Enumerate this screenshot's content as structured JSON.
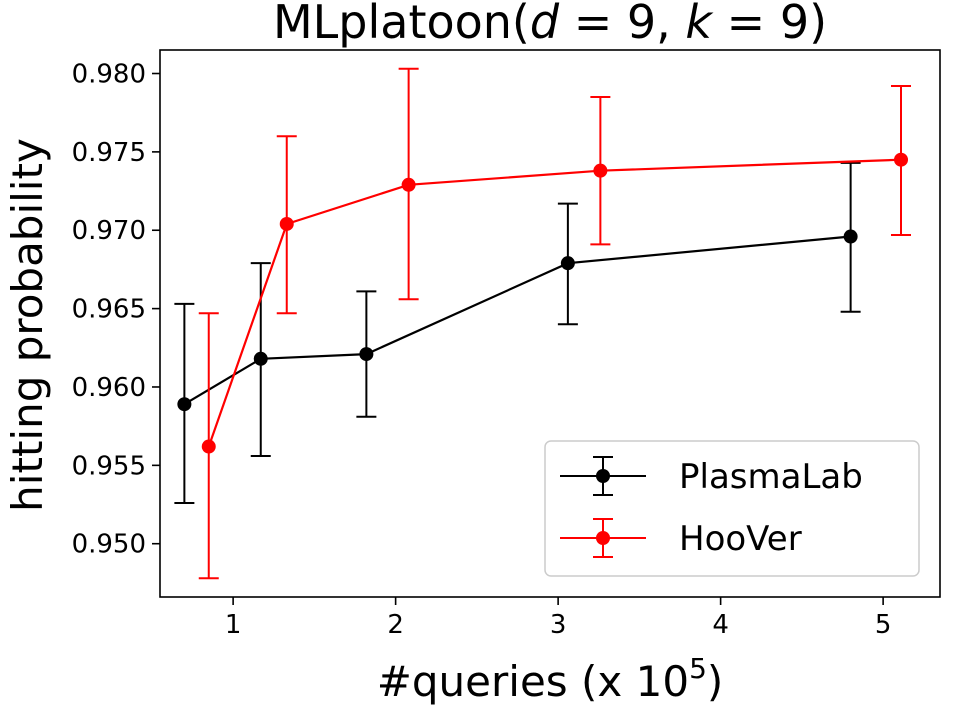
{
  "chart_data": {
    "type": "line",
    "title": {
      "prefix": "MLplatoon(",
      "d_var": "d",
      "d_val": " = 9, ",
      "k_var": "k",
      "k_val": " = 9)"
    },
    "xlabel": {
      "base": "#queries (x 10",
      "exponent": "5",
      "suffix": ")"
    },
    "ylabel": "hitting probability",
    "xlim": [
      0.55,
      5.35
    ],
    "ylim": [
      0.9466,
      0.9815
    ],
    "xticks": [
      {
        "value": 1,
        "label": "1"
      },
      {
        "value": 2,
        "label": "2"
      },
      {
        "value": 3,
        "label": "3"
      },
      {
        "value": 4,
        "label": "4"
      },
      {
        "value": 5,
        "label": "5"
      }
    ],
    "yticks": [
      {
        "value": 0.95,
        "label": "0.950"
      },
      {
        "value": 0.955,
        "label": "0.955"
      },
      {
        "value": 0.96,
        "label": "0.960"
      },
      {
        "value": 0.965,
        "label": "0.965"
      },
      {
        "value": 0.97,
        "label": "0.970"
      },
      {
        "value": 0.975,
        "label": "0.975"
      },
      {
        "value": 0.98,
        "label": "0.980"
      }
    ],
    "grid": false,
    "legend_position": "lower-right",
    "series": [
      {
        "name": "PlasmaLab",
        "color": "#000000",
        "points": [
          {
            "x": 0.7,
            "y": 0.9589,
            "lo": 0.9526,
            "hi": 0.9653
          },
          {
            "x": 1.17,
            "y": 0.9618,
            "lo": 0.9556,
            "hi": 0.9679
          },
          {
            "x": 1.82,
            "y": 0.9621,
            "lo": 0.9581,
            "hi": 0.9661
          },
          {
            "x": 3.06,
            "y": 0.9679,
            "lo": 0.964,
            "hi": 0.9717
          },
          {
            "x": 4.8,
            "y": 0.9696,
            "lo": 0.9648,
            "hi": 0.9743
          }
        ]
      },
      {
        "name": "HooVer",
        "color": "#ff0000",
        "points": [
          {
            "x": 0.85,
            "y": 0.9562,
            "lo": 0.9478,
            "hi": 0.9647
          },
          {
            "x": 1.33,
            "y": 0.9704,
            "lo": 0.9647,
            "hi": 0.976
          },
          {
            "x": 2.08,
            "y": 0.9729,
            "lo": 0.9656,
            "hi": 0.9803
          },
          {
            "x": 3.26,
            "y": 0.9738,
            "lo": 0.9691,
            "hi": 0.9785
          },
          {
            "x": 5.11,
            "y": 0.9745,
            "lo": 0.9697,
            "hi": 0.9792
          }
        ]
      }
    ]
  }
}
